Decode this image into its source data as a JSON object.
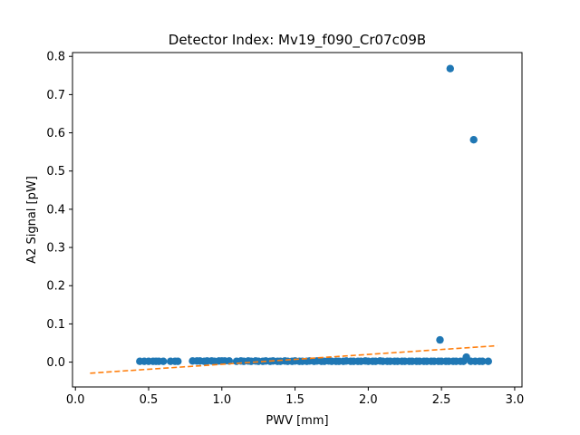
{
  "chart_data": {
    "type": "scatter",
    "title": "Detector Index: Mv19_f090_Cr07c09B",
    "xlabel": "PWV [mm]",
    "ylabel": "A2 Signal [pW]",
    "xlim": [
      -0.02,
      3.05
    ],
    "ylim": [
      -0.065,
      0.81
    ],
    "xticks": [
      0.0,
      0.5,
      1.0,
      1.5,
      2.0,
      2.5,
      3.0
    ],
    "xtick_labels": [
      "0.0",
      "0.5",
      "1.0",
      "1.5",
      "2.0",
      "2.5",
      "3.0"
    ],
    "yticks": [
      0.0,
      0.1,
      0.2,
      0.3,
      0.4,
      0.5,
      0.6,
      0.7,
      0.8
    ],
    "ytick_labels": [
      "0.0",
      "0.1",
      "0.2",
      "0.3",
      "0.4",
      "0.5",
      "0.6",
      "0.7",
      "0.8"
    ],
    "grid": false,
    "colors": {
      "points": "#1f77b4",
      "fit": "#ff7f0e"
    },
    "series": [
      {
        "name": "data",
        "type": "scatter",
        "x": [
          0.44,
          0.47,
          0.5,
          0.53,
          0.55,
          0.57,
          0.6,
          0.65,
          0.68,
          0.7,
          0.8,
          0.83,
          0.85,
          0.88,
          0.9,
          0.93,
          0.95,
          0.98,
          1.0,
          1.02,
          1.05,
          1.1,
          1.13,
          1.15,
          1.18,
          1.2,
          1.23,
          1.25,
          1.28,
          1.3,
          1.33,
          1.35,
          1.38,
          1.4,
          1.43,
          1.45,
          1.48,
          1.5,
          1.53,
          1.55,
          1.58,
          1.6,
          1.63,
          1.65,
          1.68,
          1.7,
          1.73,
          1.75,
          1.78,
          1.8,
          1.83,
          1.85,
          1.88,
          1.9,
          1.93,
          1.95,
          1.98,
          2.0,
          2.03,
          2.05,
          2.08,
          2.1,
          2.13,
          2.15,
          2.18,
          2.2,
          2.23,
          2.25,
          2.28,
          2.3,
          2.33,
          2.35,
          2.38,
          2.4,
          2.43,
          2.45,
          2.48,
          2.5,
          2.53,
          2.55,
          2.58,
          2.6,
          2.63,
          2.65,
          2.67,
          2.7,
          2.73,
          2.76,
          2.78,
          2.82,
          2.49,
          2.56,
          2.72
        ],
        "y": [
          0.002,
          0.002,
          0.002,
          0.002,
          0.002,
          0.002,
          0.002,
          0.002,
          0.002,
          0.002,
          0.003,
          0.003,
          0.003,
          0.002,
          0.003,
          0.003,
          0.002,
          0.003,
          0.003,
          0.003,
          0.003,
          0.002,
          0.003,
          0.002,
          0.003,
          0.002,
          0.003,
          0.002,
          0.002,
          0.003,
          0.002,
          0.003,
          0.002,
          0.002,
          0.003,
          0.002,
          0.002,
          0.003,
          0.002,
          0.002,
          0.002,
          0.003,
          0.002,
          0.003,
          0.002,
          0.002,
          0.003,
          0.002,
          0.002,
          0.002,
          0.002,
          0.003,
          0.002,
          0.002,
          0.002,
          0.002,
          0.003,
          0.002,
          0.002,
          0.002,
          0.003,
          0.002,
          0.002,
          0.002,
          0.002,
          0.002,
          0.002,
          0.002,
          0.002,
          0.002,
          0.002,
          0.002,
          0.002,
          0.002,
          0.002,
          0.002,
          0.002,
          0.002,
          0.002,
          0.002,
          0.002,
          0.002,
          0.002,
          0.002,
          0.013,
          0.002,
          0.002,
          0.002,
          0.002,
          0.002,
          0.058,
          0.768,
          0.582
        ]
      },
      {
        "name": "fit",
        "type": "line",
        "style": "dashed",
        "x": [
          0.1,
          2.88
        ],
        "y": [
          -0.029,
          0.043
        ]
      }
    ]
  }
}
